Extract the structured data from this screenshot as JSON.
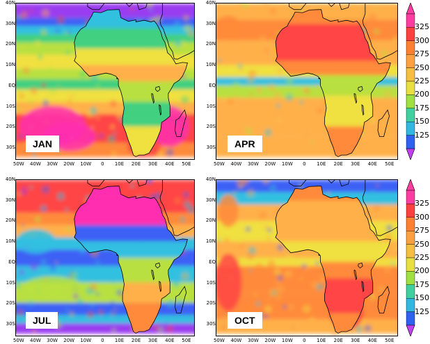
{
  "panels": [
    {
      "id": "jan",
      "label": "JAN",
      "theme": "jan"
    },
    {
      "id": "apr",
      "label": "APR",
      "theme": "apr"
    },
    {
      "id": "jul",
      "label": "JUL",
      "theme": "jul"
    },
    {
      "id": "oct",
      "label": "OCT",
      "theme": "oct"
    }
  ],
  "lat_labels": [
    "40N",
    "30N",
    "20N",
    "10N",
    "EQ",
    "10S",
    "20S",
    "30S"
  ],
  "lon_labels": [
    "50W",
    "40W",
    "30W",
    "20W",
    "10W",
    "0",
    "10E",
    "20E",
    "30E",
    "40E",
    "50E"
  ],
  "colorbar": {
    "ticks": [
      "325",
      "300",
      "275",
      "250",
      "225",
      "200",
      "175",
      "150",
      "125"
    ],
    "colors": [
      "#a020f0",
      "#ff3ca0",
      "#ff4040",
      "#ff8030",
      "#ffa040",
      "#f5c040",
      "#e8e040",
      "#a0e040",
      "#40d0a0",
      "#30b8e0",
      "#3060f0",
      "#c040f0"
    ]
  },
  "colors": {
    "magenta": "#ff2fb0",
    "red": "#ff4545",
    "orange": "#ff8a3a",
    "light_orange": "#ffb04a",
    "yellow": "#f0e040",
    "yellow_green": "#b8e040",
    "green": "#40d080",
    "cyan": "#30c0e0",
    "blue": "#3d60f5",
    "purple": "#9a3cf0",
    "coast": "#000000"
  }
}
